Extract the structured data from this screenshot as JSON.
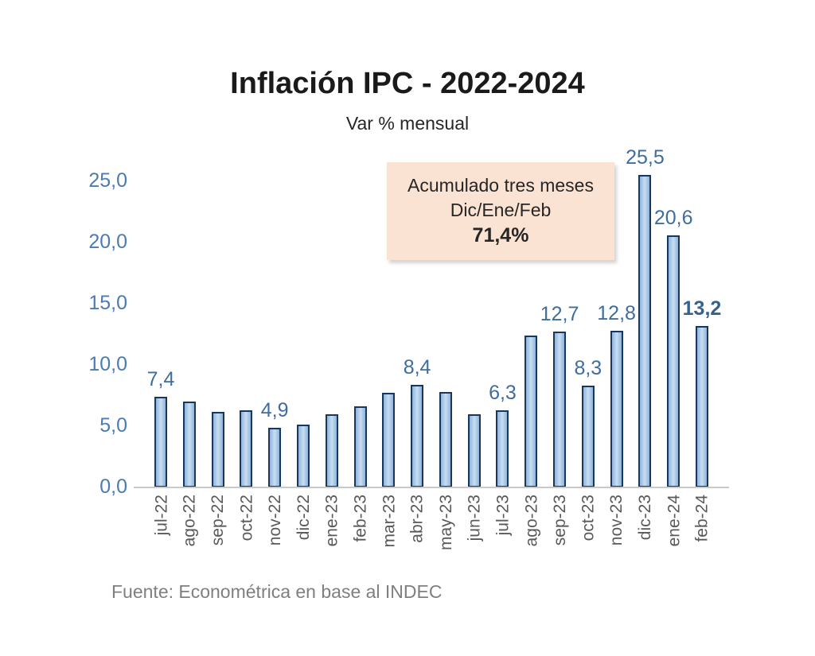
{
  "page": {
    "background": "#ffffff"
  },
  "chart_data": {
    "type": "bar",
    "title": "Inflación IPC - 2022-2024",
    "subtitle": "Var % mensual",
    "categories": [
      "jul-22",
      "ago-22",
      "sep-22",
      "oct-22",
      "nov-22",
      "dic-22",
      "ene-23",
      "feb-23",
      "mar-23",
      "abr-23",
      "may-23",
      "jun-23",
      "jul-23",
      "ago-23",
      "sep-23",
      "oct-23",
      "nov-23",
      "dic-23",
      "ene-24",
      "feb-24"
    ],
    "values": [
      7.4,
      7.0,
      6.2,
      6.3,
      4.9,
      5.1,
      6.0,
      6.6,
      7.7,
      8.4,
      7.8,
      6.0,
      6.3,
      12.4,
      12.7,
      8.3,
      12.8,
      25.5,
      20.6,
      13.2
    ],
    "point_labels": [
      "7,4",
      null,
      null,
      null,
      "4,9",
      null,
      null,
      null,
      null,
      "8,4",
      null,
      null,
      "6,3",
      null,
      "12,7",
      "8,3",
      "12,8",
      "25,5",
      "20,6",
      "13,2"
    ],
    "label_bold": [
      false,
      false,
      false,
      false,
      false,
      false,
      false,
      false,
      false,
      false,
      false,
      false,
      false,
      false,
      false,
      false,
      false,
      false,
      false,
      true
    ],
    "yticks": [
      "0,0",
      "5,0",
      "10,0",
      "15,0",
      "20,0",
      "25,0"
    ],
    "ytick_values": [
      0,
      5,
      10,
      15,
      20,
      25
    ],
    "ylim": [
      0,
      26.5
    ],
    "grid": false,
    "legend": "none",
    "xlabel": "",
    "ylabel": "",
    "annotation": {
      "line1": "Acumulado tres meses",
      "line2": "Dic/Ene/Feb",
      "line3": "71,4%",
      "background": "#FBE3D4"
    },
    "source": "Fuente: Econométrica en base al INDEC",
    "colors": {
      "bar_fill": "#A9C7E8",
      "bar_fill_highlight": "#C9DEF2",
      "bar_border": "#17375E",
      "value_label": "#3E6D9E",
      "y_tick_label": "#4A7BB5",
      "x_tick_label": "#595959",
      "baseline": "#C9C9C9",
      "title": "#1A1A1A",
      "source_text": "#7F7F7F"
    }
  }
}
